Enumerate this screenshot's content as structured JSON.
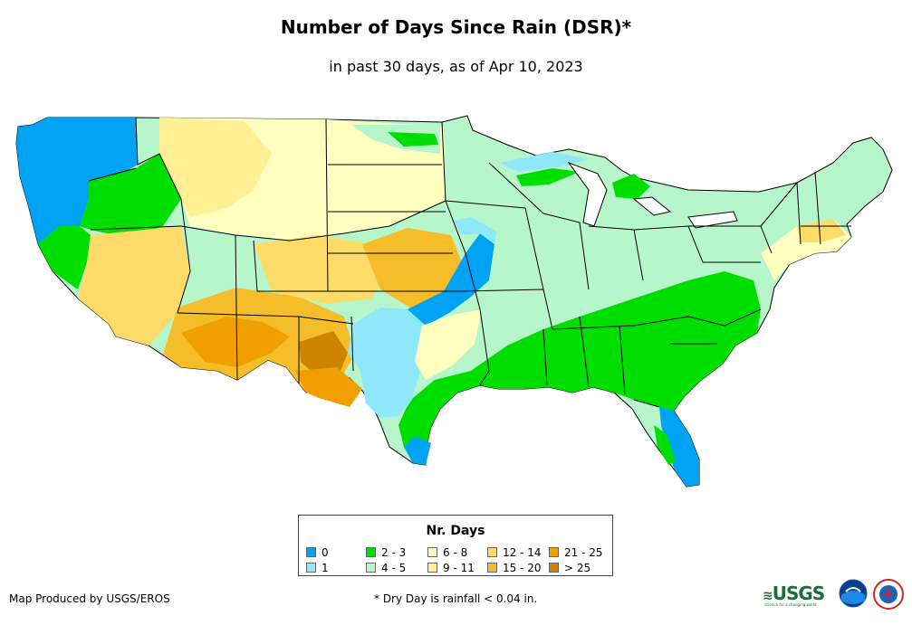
{
  "title": "Number of Days Since Rain (DSR)*",
  "subtitle": "in past 30 days, as of Apr 10, 2023",
  "legend": {
    "title": "Nr. Days",
    "items": [
      {
        "label": "0",
        "color": "#00a2f4"
      },
      {
        "label": "1",
        "color": "#8fe8fa"
      },
      {
        "label": "2 - 3",
        "color": "#00de00"
      },
      {
        "label": "4 - 5",
        "color": "#b6f6ca"
      },
      {
        "label": "6 - 8",
        "color": "#ffffc0"
      },
      {
        "label": "9 - 11",
        "color": "#fff096"
      },
      {
        "label": "12 - 14",
        "color": "#fddb69"
      },
      {
        "label": "15 - 20",
        "color": "#f5bd29"
      },
      {
        "label": "21 - 25",
        "color": "#ef9f00"
      },
      {
        "label": "> 25",
        "color": "#cd8400"
      }
    ]
  },
  "credit": "Map Produced by USGS/EROS",
  "footnote": "* Dry Day is rainfall < 0.04 in.",
  "logos": {
    "usgs": "USGS",
    "usgs_tagline": "science for a changing world"
  }
}
